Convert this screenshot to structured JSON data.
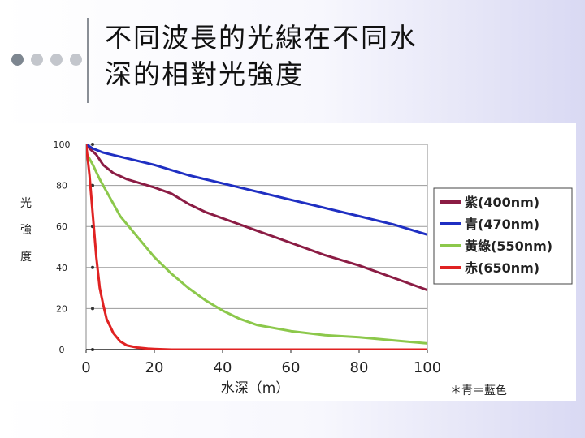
{
  "slide": {
    "title_line1": "不同波長的光線在不同水",
    "title_line2": "深的相對光強度"
  },
  "chart_data": {
    "type": "line",
    "title": "",
    "xlabel": "水深（m）",
    "ylabel": "光強度",
    "xlim": [
      0,
      100
    ],
    "ylim": [
      0,
      100
    ],
    "xticks": [
      0,
      20,
      40,
      60,
      80,
      100
    ],
    "yticks": [
      0,
      20,
      40,
      60,
      80,
      100
    ],
    "grid": true,
    "legend_position": "right",
    "note": "＊青＝藍色",
    "series": [
      {
        "name": "紫(400nm)",
        "color": "#8b1c44",
        "x": [
          0,
          1,
          3,
          5,
          8,
          12,
          16,
          20,
          25,
          30,
          35,
          40,
          50,
          60,
          70,
          80,
          90,
          100
        ],
        "y": [
          100,
          98,
          95,
          90,
          86,
          83,
          81,
          79,
          76,
          71,
          67,
          64,
          58,
          52,
          46,
          41,
          35,
          29
        ]
      },
      {
        "name": "青(470nm)",
        "color": "#1f2fc2",
        "x": [
          0,
          2,
          5,
          10,
          20,
          30,
          40,
          50,
          60,
          70,
          80,
          90,
          100
        ],
        "y": [
          100,
          98,
          96,
          94,
          90,
          85,
          81,
          77,
          73,
          69,
          65,
          61,
          56
        ]
      },
      {
        "name": "黃綠(550nm)",
        "color": "#8cc84b",
        "x": [
          0,
          2,
          4,
          6,
          8,
          10,
          15,
          20,
          25,
          30,
          35,
          40,
          45,
          50,
          60,
          70,
          80,
          90,
          100
        ],
        "y": [
          96,
          90,
          83,
          77,
          71,
          65,
          55,
          45,
          37,
          30,
          24,
          19,
          15,
          12,
          9,
          7,
          6,
          4.5,
          3
        ]
      },
      {
        "name": "赤(650nm)",
        "color": "#e02222",
        "x": [
          0,
          1,
          2,
          3,
          4,
          5,
          6,
          8,
          10,
          12,
          15,
          18,
          20,
          25,
          30,
          50,
          100
        ],
        "y": [
          100,
          85,
          65,
          45,
          30,
          22,
          15,
          8,
          4,
          2,
          1,
          0.5,
          0.3,
          0,
          0,
          0,
          0
        ]
      }
    ]
  }
}
